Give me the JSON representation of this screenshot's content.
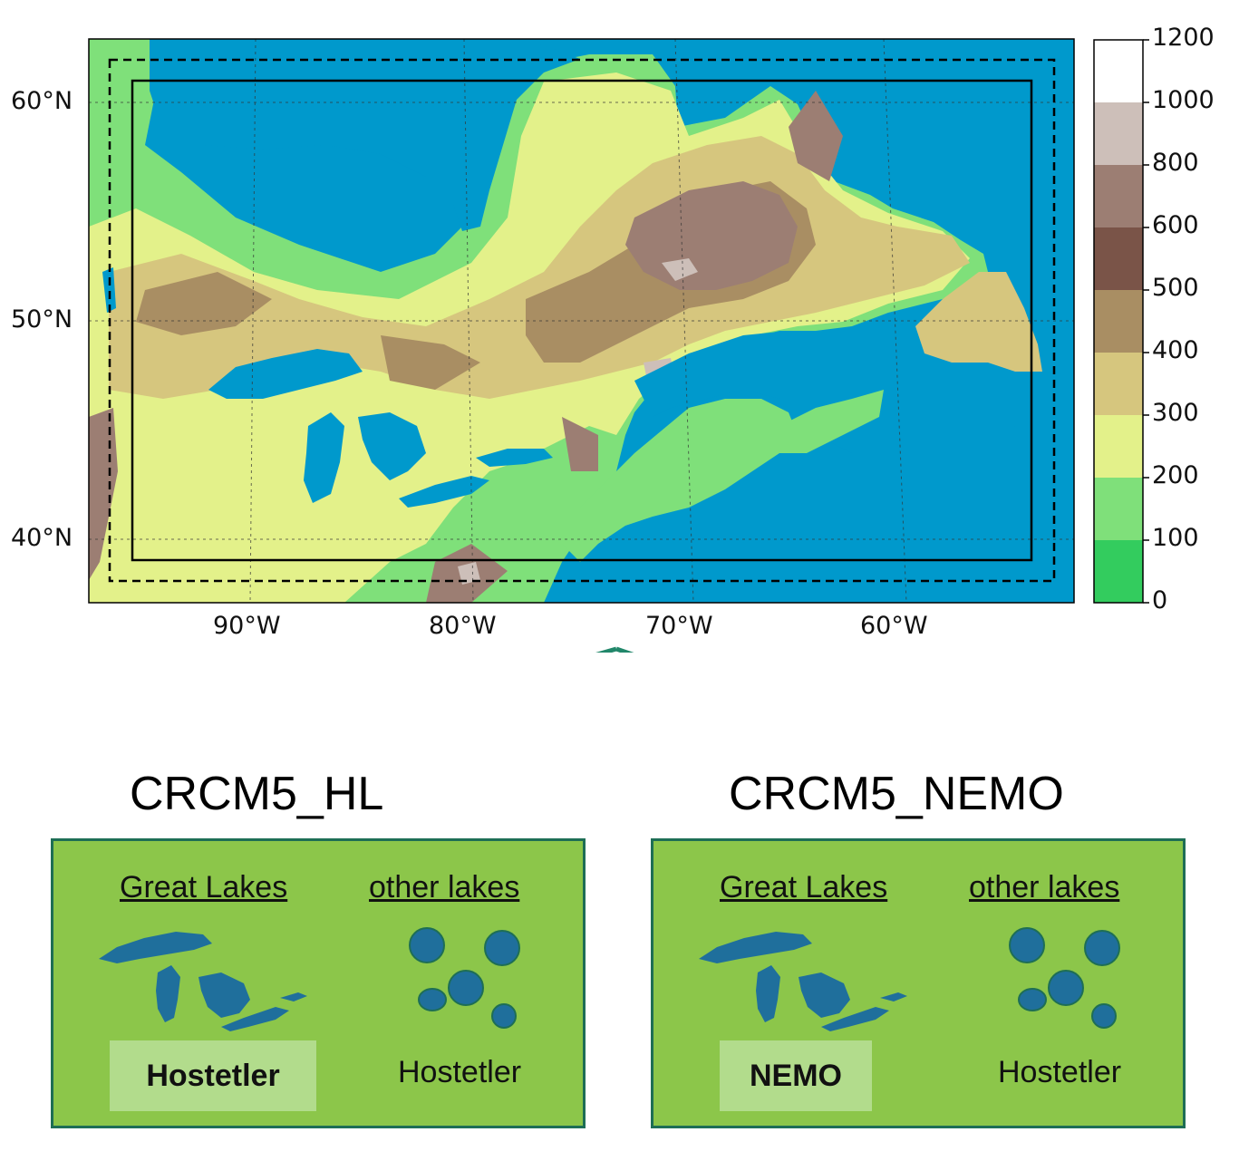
{
  "map": {
    "lat_labels": [
      "60°N",
      "50°N",
      "40°N"
    ],
    "lon_labels": [
      "90°W",
      "80°W",
      "70°W",
      "60°W"
    ],
    "colorbar": {
      "ticks": [
        "1200",
        "1000",
        "800",
        "600",
        "500",
        "400",
        "300",
        "200",
        "100",
        "0"
      ],
      "colors": [
        "#ffffff",
        "#cdbfb9",
        "#9c7e73",
        "#7a5448",
        "#a98e63",
        "#d6c67e",
        "#e3f18a",
        "#7fe07a",
        "#33cc5e"
      ]
    },
    "colors": {
      "ocean": "#0099cc",
      "lowland": "#33cc5e",
      "plain": "#7fe07a",
      "upland": "#e3f18a",
      "plateau": "#d6c67e",
      "highland": "#a98e63",
      "mountain": "#9c7e73",
      "peak": "#cdbfb9"
    }
  },
  "arrow_color": "#21876a",
  "models": [
    {
      "title": "CRCM5_HL",
      "great_lakes_heading": "Great Lakes",
      "other_lakes_heading": "other lakes",
      "great_lakes_scheme": "Hostetler",
      "other_lakes_scheme": "Hostetler"
    },
    {
      "title": "CRCM5_NEMO",
      "great_lakes_heading": "Great Lakes",
      "other_lakes_heading": "other lakes",
      "great_lakes_scheme": "NEMO",
      "other_lakes_scheme": "Hostetler"
    }
  ],
  "panel_colors": {
    "background": "#8cc64a",
    "border": "#1e6e55",
    "highlight": "#b2dc8c",
    "lake": "#1f6f9c"
  }
}
